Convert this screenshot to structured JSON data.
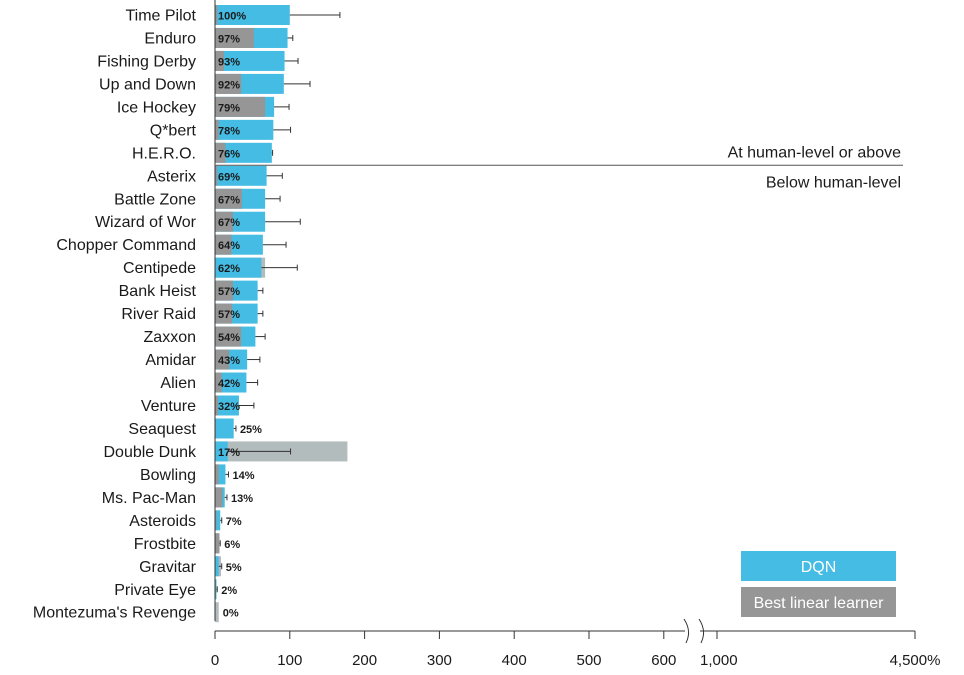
{
  "chart_data": {
    "type": "bar",
    "orientation": "horizontal",
    "x_unit": "%",
    "x_ticks": [
      "0",
      "100",
      "200",
      "300",
      "400",
      "500",
      "600",
      "1,000",
      "4,500%"
    ],
    "x_axis_broken": true,
    "threshold_value": 75,
    "annotations": {
      "above": "At human-level or above",
      "below": "Below human-level"
    },
    "legend": {
      "placement": "bottom-right",
      "items": [
        {
          "label": "DQN",
          "color": "#44bce4"
        },
        {
          "label": "Best linear learner",
          "color": "#969696"
        }
      ]
    },
    "colors": {
      "dqn": "#44bce4",
      "linear": "#969696",
      "linear_overlap": "#b3bcbc"
    },
    "games": [
      {
        "name": "Time Pilot",
        "dqn": 100,
        "linear": 3,
        "err": 67,
        "label": "100%",
        "label_inside": true
      },
      {
        "name": "Enduro",
        "dqn": 97,
        "linear": 52,
        "err": 7,
        "label": "97%",
        "label_inside": true
      },
      {
        "name": "Fishing Derby",
        "dqn": 93,
        "linear": 12,
        "err": 18,
        "label": "93%",
        "label_inside": true
      },
      {
        "name": "Up and Down",
        "dqn": 92,
        "linear": 35,
        "err": 35,
        "label": "92%",
        "label_inside": true
      },
      {
        "name": "Ice Hockey",
        "dqn": 79,
        "linear": 67,
        "err": 20,
        "label": "79%",
        "label_inside": true
      },
      {
        "name": "Q*bert",
        "dqn": 78,
        "linear": 5,
        "err": 23,
        "label": "78%",
        "label_inside": true
      },
      {
        "name": "H.E.R.O.",
        "dqn": 76,
        "linear": 14,
        "err": 1,
        "label": "76%",
        "label_inside": true
      },
      {
        "name": "Asterix",
        "dqn": 69,
        "linear": 3,
        "err": 21,
        "label": "69%",
        "label_inside": true
      },
      {
        "name": "Battle Zone",
        "dqn": 67,
        "linear": 36,
        "err": 20,
        "label": "67%",
        "label_inside": true
      },
      {
        "name": "Wizard of Wor",
        "dqn": 67,
        "linear": 24,
        "err": 47,
        "label": "67%",
        "label_inside": true
      },
      {
        "name": "Chopper Command",
        "dqn": 64,
        "linear": 22,
        "err": 31,
        "label": "64%",
        "label_inside": true
      },
      {
        "name": "Centipede",
        "dqn": 62,
        "linear": 67,
        "err": 48,
        "label": "62%",
        "label_inside": true
      },
      {
        "name": "Bank Heist",
        "dqn": 57,
        "linear": 24,
        "err": 7,
        "label": "57%",
        "label_inside": true
      },
      {
        "name": "River Raid",
        "dqn": 57,
        "linear": 23,
        "err": 7,
        "label": "57%",
        "label_inside": true
      },
      {
        "name": "Zaxxon",
        "dqn": 54,
        "linear": 35,
        "err": 13,
        "label": "54%",
        "label_inside": true
      },
      {
        "name": "Amidar",
        "dqn": 43,
        "linear": 19,
        "err": 17,
        "label": "43%",
        "label_inside": true
      },
      {
        "name": "Alien",
        "dqn": 42,
        "linear": 9,
        "err": 15,
        "label": "42%",
        "label_inside": true
      },
      {
        "name": "Venture",
        "dqn": 32,
        "linear": 4,
        "err": 20,
        "label": "32%",
        "label_inside": true
      },
      {
        "name": "Seaquest",
        "dqn": 25,
        "linear": 1,
        "err": 3,
        "label": "25%",
        "label_inside": false
      },
      {
        "name": "Double Dunk",
        "dqn": 17,
        "linear": 177,
        "err": 84,
        "label": "17%",
        "label_inside": true
      },
      {
        "name": "Bowling",
        "dqn": 14,
        "linear": 5,
        "err": 4,
        "label": "14%",
        "label_inside": false
      },
      {
        "name": "Ms. Pac-Man",
        "dqn": 13,
        "linear": 10,
        "err": 3,
        "label": "13%",
        "label_inside": false
      },
      {
        "name": "Asteroids",
        "dqn": 7,
        "linear": 2,
        "err": 2,
        "label": "7%",
        "label_inside": false
      },
      {
        "name": "Frostbite",
        "dqn": 6,
        "linear": 6,
        "err": 1,
        "label": "6%",
        "label_inside": false
      },
      {
        "name": "Gravitar",
        "dqn": 5,
        "linear": 8,
        "err": 4,
        "label": "5%",
        "label_inside": false
      },
      {
        "name": "Private Eye",
        "dqn": 2,
        "linear": 1,
        "err": 1,
        "label": "2%",
        "label_inside": false
      },
      {
        "name": "Montezuma's Revenge",
        "dqn": 0,
        "linear": 5,
        "err": 0,
        "label": "0%",
        "label_inside": false
      }
    ]
  }
}
